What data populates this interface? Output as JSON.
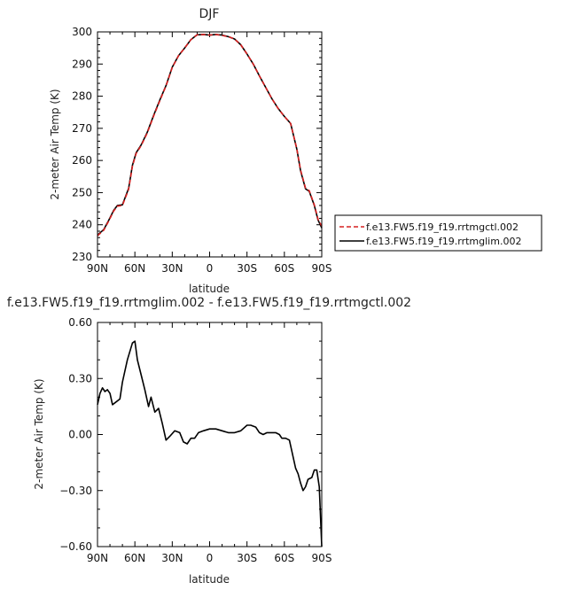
{
  "chart_data": [
    {
      "type": "line",
      "title": "DJF",
      "xlabel": "latitude",
      "ylabel": "2-meter Air Temp (K)",
      "x_tick_labels": [
        "90N",
        "60N",
        "30N",
        "0",
        "30S",
        "60S",
        "90S"
      ],
      "x_tick_values": [
        90,
        60,
        30,
        0,
        -30,
        -60,
        -90
      ],
      "y_tick_labels": [
        "230",
        "240",
        "250",
        "260",
        "270",
        "280",
        "290",
        "300"
      ],
      "y_tick_values": [
        230,
        240,
        250,
        260,
        270,
        280,
        290,
        300
      ],
      "xlim": [
        90,
        -90
      ],
      "ylim": [
        230,
        300
      ],
      "legend_position": "right",
      "series": [
        {
          "name": "f.e13.FW5.f19_f19.rrtmgctl.002",
          "color": "#d62020",
          "style": "dashed",
          "x": [
            90,
            85,
            81,
            77,
            74,
            70,
            65,
            62,
            59,
            55,
            50,
            45,
            40,
            35,
            30,
            25,
            20,
            15,
            10,
            5,
            0,
            -5,
            -10,
            -15,
            -20,
            -25,
            -30,
            -35,
            -40,
            -45,
            -50,
            -55,
            -60,
            -65,
            -70,
            -73,
            -77,
            -80,
            -84,
            -87,
            -90
          ],
          "y": [
            236.6,
            238.3,
            241.2,
            244.3,
            245.8,
            246.0,
            251.0,
            258.2,
            262.2,
            264.6,
            268.6,
            273.8,
            278.6,
            283.2,
            288.9,
            292.6,
            295.0,
            297.6,
            299.1,
            299.2,
            299.0,
            299.2,
            298.9,
            298.5,
            297.8,
            296.0,
            293.1,
            290.0,
            286.3,
            282.7,
            279.2,
            276.2,
            273.7,
            271.5,
            263.6,
            257.0,
            251.4,
            250.6,
            246.2,
            241.7,
            239.6
          ]
        },
        {
          "name": "f.e13.FW5.f19_f19.rrtmglim.002",
          "color": "#000000",
          "style": "solid",
          "x": [
            90,
            85,
            81,
            77,
            74,
            70,
            65,
            62,
            59,
            55,
            50,
            45,
            40,
            35,
            30,
            25,
            20,
            15,
            10,
            5,
            0,
            -5,
            -10,
            -15,
            -20,
            -25,
            -30,
            -35,
            -40,
            -45,
            -50,
            -55,
            -60,
            -65,
            -70,
            -73,
            -77,
            -80,
            -84,
            -87,
            -90
          ],
          "y": [
            236.8,
            238.5,
            241.4,
            244.5,
            246.0,
            246.2,
            251.3,
            258.5,
            262.4,
            264.8,
            268.8,
            274.0,
            278.8,
            283.3,
            289.0,
            292.6,
            295.0,
            297.6,
            299.1,
            299.2,
            299.0,
            299.2,
            299.0,
            298.5,
            297.8,
            296.0,
            293.1,
            290.0,
            286.3,
            282.7,
            279.2,
            276.2,
            273.7,
            271.5,
            263.5,
            256.8,
            251.2,
            250.4,
            246.0,
            241.5,
            239.0
          ]
        }
      ]
    },
    {
      "type": "line",
      "title": "f.e13.FW5.f19_f19.rrtmglim.002 - f.e13.FW5.f19_f19.rrtmgctl.002",
      "xlabel": "latitude",
      "ylabel": "2-meter Air Temp (K)",
      "x_tick_labels": [
        "90N",
        "60N",
        "30N",
        "0",
        "30S",
        "60S",
        "90S"
      ],
      "x_tick_values": [
        90,
        60,
        30,
        0,
        -30,
        -60,
        -90
      ],
      "y_tick_labels": [
        "−0.60",
        "−0.30",
        "0.00",
        "0.30",
        "0.60"
      ],
      "y_tick_values": [
        -0.6,
        -0.3,
        0.0,
        0.3,
        0.6
      ],
      "xlim": [
        90,
        -90
      ],
      "ylim": [
        -0.6,
        0.6
      ],
      "series": [
        {
          "color": "#000000",
          "style": "solid",
          "x": [
            90,
            88,
            86,
            84,
            82,
            80,
            78,
            76,
            72,
            70,
            66,
            62,
            60,
            58,
            55,
            52,
            49,
            47,
            44,
            41,
            38,
            35,
            32,
            28,
            24,
            21,
            18,
            15,
            12,
            9,
            5,
            0,
            -5,
            -10,
            -15,
            -20,
            -25,
            -30,
            -33,
            -37,
            -40,
            -43,
            -46,
            -50,
            -53,
            -56,
            -58,
            -61,
            -64,
            -67,
            -69,
            -71,
            -73,
            -75,
            -77,
            -79,
            -82,
            -84,
            -86,
            -88,
            -90
          ],
          "y": [
            0.16,
            0.22,
            0.25,
            0.23,
            0.24,
            0.22,
            0.16,
            0.17,
            0.19,
            0.28,
            0.4,
            0.49,
            0.5,
            0.4,
            0.32,
            0.24,
            0.15,
            0.2,
            0.12,
            0.14,
            0.06,
            -0.03,
            -0.01,
            0.02,
            0.01,
            -0.04,
            -0.05,
            -0.02,
            -0.02,
            0.01,
            0.02,
            0.03,
            0.03,
            0.02,
            0.01,
            0.01,
            0.02,
            0.05,
            0.05,
            0.04,
            0.01,
            0.0,
            0.01,
            0.01,
            0.01,
            0.0,
            -0.02,
            -0.02,
            -0.03,
            -0.12,
            -0.18,
            -0.21,
            -0.26,
            -0.3,
            -0.28,
            -0.24,
            -0.23,
            -0.19,
            -0.19,
            -0.28,
            -0.6
          ]
        }
      ]
    }
  ]
}
